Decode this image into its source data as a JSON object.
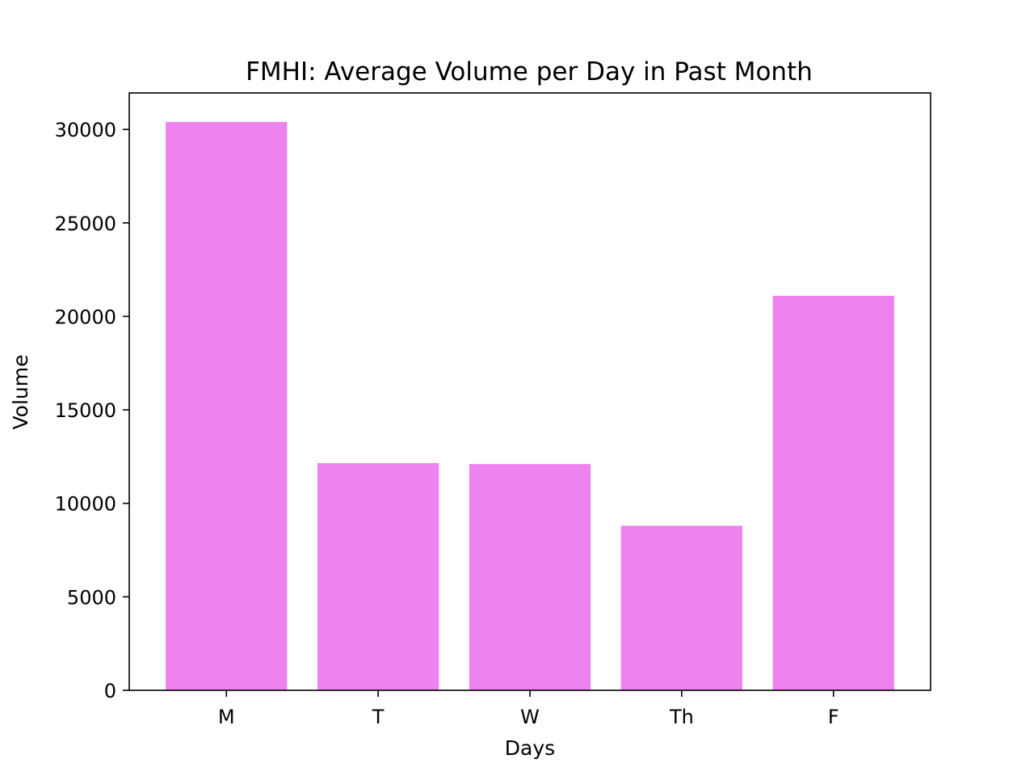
{
  "chart_data": {
    "type": "bar",
    "title": "FMHI: Average Volume per Day in Past Month",
    "xlabel": "Days",
    "ylabel": "Volume",
    "categories": [
      "M",
      "T",
      "W",
      "Th",
      "F"
    ],
    "values": [
      30400,
      12150,
      12100,
      8800,
      21100
    ],
    "ylim": [
      0,
      31950
    ],
    "yticks": [
      0,
      5000,
      10000,
      15000,
      20000,
      25000,
      30000
    ],
    "ytick_labels": [
      "0",
      "5000",
      "10000",
      "15000",
      "20000",
      "25000",
      "30000"
    ],
    "bar_color": "#ee82ee",
    "grid": false,
    "legend": "none"
  }
}
